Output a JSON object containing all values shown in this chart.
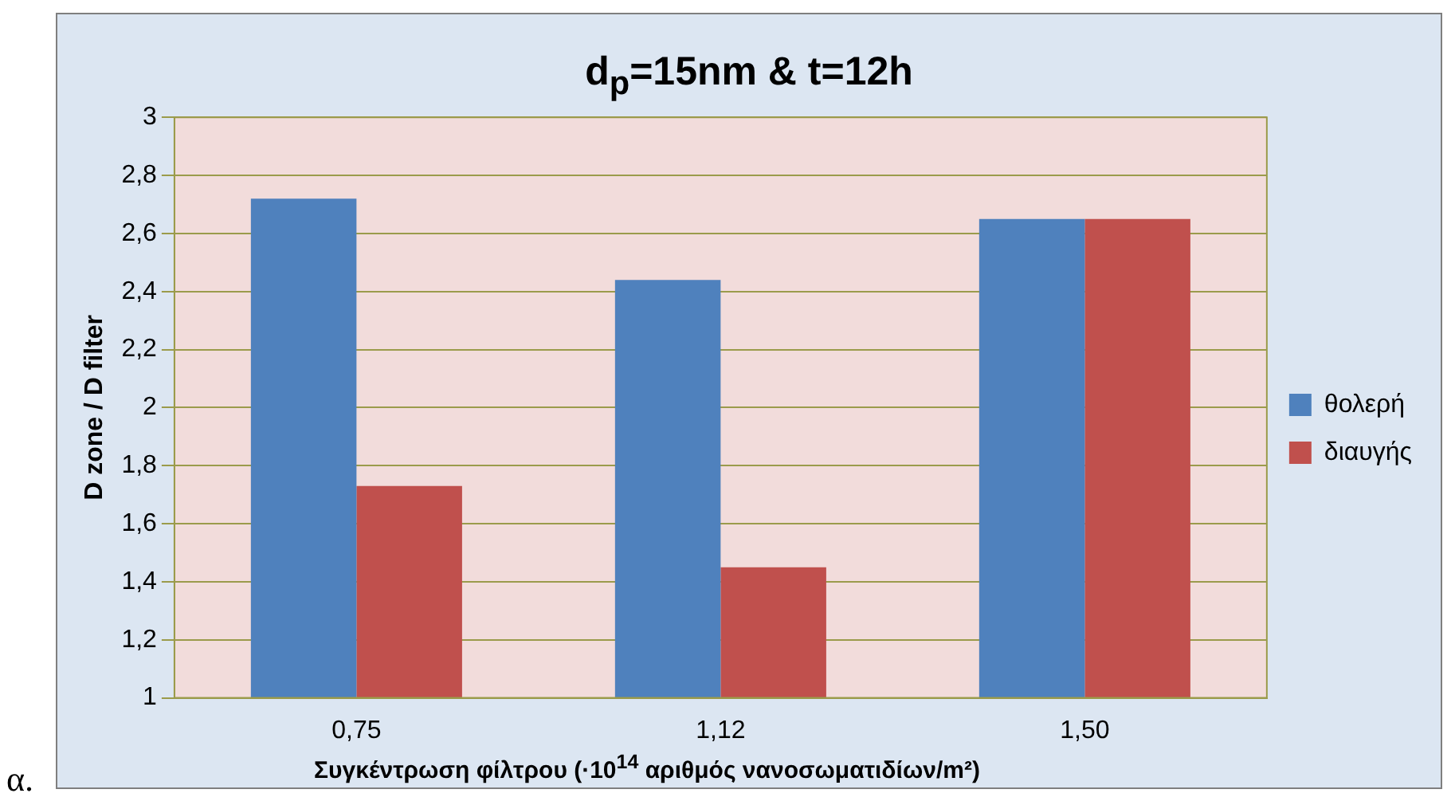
{
  "chart_data": {
    "type": "bar",
    "title": "d$_{p}$=15nm & t=12h",
    "xlabel": "Συγκέντρωση φίλτρου (·10$^{14}$ αριθμός νανοσωματιδίων/m²)",
    "ylabel": "D zone / D filter",
    "categories": [
      "0,75",
      "1,12",
      "1,50"
    ],
    "series": [
      {
        "name": "θολερή",
        "color": "#4f81bd",
        "values": [
          2.72,
          2.44,
          2.65
        ]
      },
      {
        "name": "διαυγής",
        "color": "#c0504d",
        "values": [
          1.73,
          1.45,
          2.65
        ]
      }
    ],
    "ylim": [
      1,
      3
    ],
    "yticks": [
      1,
      {
        "value": 1.2,
        "label": "1,2"
      },
      {
        "value": 1.4,
        "label": "1,4"
      },
      {
        "value": 1.6,
        "label": "1,6"
      },
      {
        "value": 1.8,
        "label": "1,8"
      },
      2,
      {
        "value": 2.2,
        "label": "2,2"
      },
      {
        "value": 2.4,
        "label": "2,4"
      },
      {
        "value": 2.6,
        "label": "2,6"
      },
      {
        "value": 2.8,
        "label": "2,8"
      },
      3
    ],
    "grid": "y",
    "legend": "right",
    "annotations": [
      "α."
    ]
  }
}
